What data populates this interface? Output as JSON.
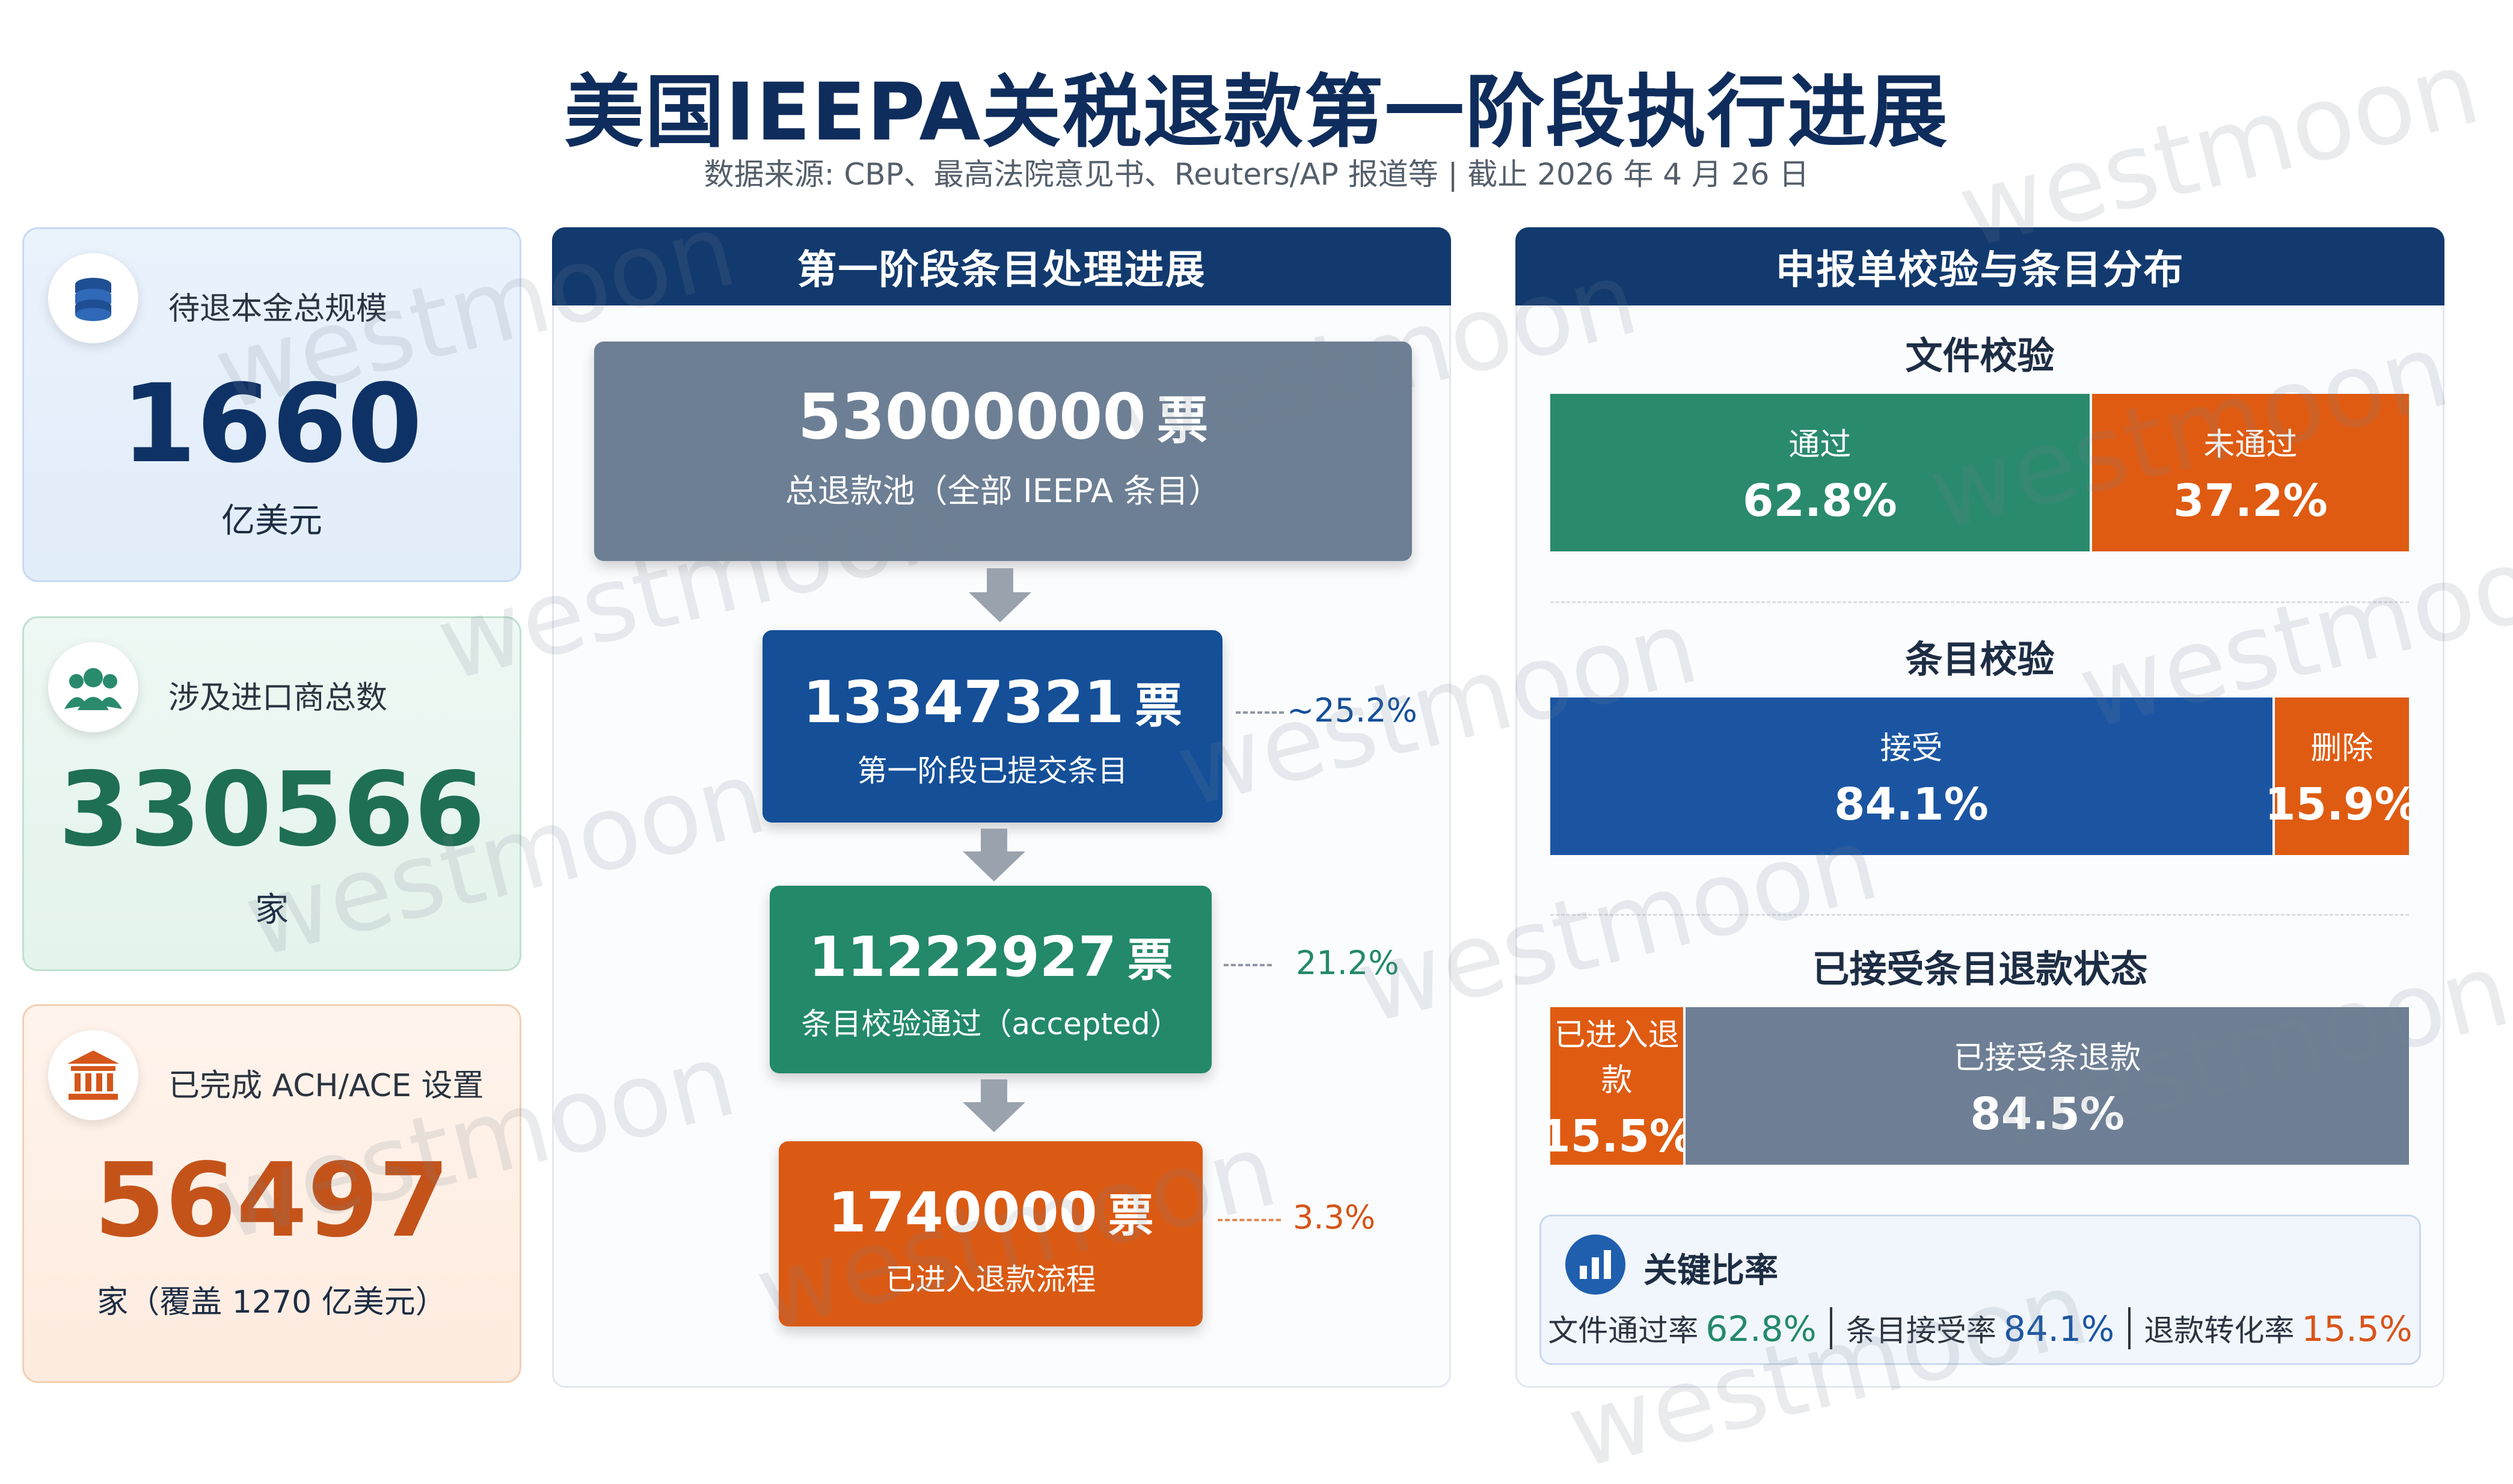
{
  "header": {
    "title": "美国IEEPA关税退款第一阶段执行进展",
    "subtitle": "数据来源: CBP、最高法院意见书、Reuters/AP 报道等 | 截止 2026 年 4 月 26 日"
  },
  "stats": [
    {
      "label": "待退本金总规模",
      "value": "1660",
      "unit": "亿美元",
      "icon": "coins-icon",
      "color": "#0f3266"
    },
    {
      "label": "涉及进口商总数",
      "value": "330566",
      "unit": "家",
      "icon": "users-icon",
      "color": "#1f6f55"
    },
    {
      "label": "已完成 ACH/ACE 设置",
      "value": "56497",
      "unit": "家（覆盖 1270 亿美元）",
      "icon": "bank-icon",
      "color": "#c4531a"
    }
  ],
  "flow_panel": {
    "title": "第一阶段条目处理进展",
    "unit": "票",
    "steps": [
      {
        "value": "53000000",
        "desc": "总退款池（全部 IEEPA 条目）",
        "pct": "",
        "color": "#6d7f94"
      },
      {
        "value": "13347321",
        "desc": "第一阶段已提交条目",
        "pct": "~25.2%",
        "color": "#144f98"
      },
      {
        "value": "11222927",
        "desc": "条目校验通过（accepted）",
        "pct": "21.2%",
        "color": "#23896a"
      },
      {
        "value": "1740000",
        "desc": "已进入退款流程",
        "pct": "3.3%",
        "color": "#da5a14"
      }
    ]
  },
  "dist_panel": {
    "title": "申报单校验与条目分布",
    "sections": [
      {
        "title": "文件校验",
        "segments": [
          {
            "label": "通过",
            "pct": "62.8%",
            "value": 62.8,
            "color": "#2a8a6e"
          },
          {
            "label": "未通过",
            "pct": "37.2%",
            "value": 37.2,
            "color": "#df5b12"
          }
        ]
      },
      {
        "title": "条目校验",
        "segments": [
          {
            "label": "接受",
            "pct": "84.1%",
            "value": 84.1,
            "color": "#1b55a2"
          },
          {
            "label": "删除",
            "pct": "15.9%",
            "value": 15.9,
            "color": "#df5b12"
          }
        ]
      },
      {
        "title": "已接受条目退款状态",
        "segments": [
          {
            "label": "已进入退款",
            "pct": "15.5%",
            "value": 15.5,
            "color": "#df5b12"
          },
          {
            "label": "已接受条退款",
            "pct": "84.5%",
            "value": 84.5,
            "color": "#6e7f95"
          }
        ]
      }
    ]
  },
  "ratios": {
    "title": "关键比率",
    "items": [
      {
        "label": "文件通过率",
        "value": "62.8%",
        "color": "#23896a"
      },
      {
        "label": "条目接受率",
        "value": "84.1%",
        "color": "#1b55a2"
      },
      {
        "label": "退款转化率",
        "value": "15.5%",
        "color": "#d9541a"
      }
    ]
  },
  "watermark": "westmoon",
  "chart_data": [
    {
      "type": "bar",
      "title": "第一阶段条目处理进展",
      "categories": [
        "总退款池（全部 IEEPA 条目）",
        "第一阶段已提交条目",
        "条目校验通过（accepted）",
        "已进入退款流程"
      ],
      "values": [
        53000000,
        13347321,
        11222927,
        1740000
      ]
    },
    {
      "type": "bar",
      "title": "文件校验",
      "categories": [
        "通过",
        "未通过"
      ],
      "values": [
        62.8,
        37.2
      ]
    },
    {
      "type": "bar",
      "title": "条目校验",
      "categories": [
        "接受",
        "删除"
      ],
      "values": [
        84.1,
        15.9
      ]
    },
    {
      "type": "bar",
      "title": "已接受条目退款状态",
      "categories": [
        "已进入退款",
        "已接受条退款"
      ],
      "values": [
        15.5,
        84.5
      ]
    }
  ]
}
